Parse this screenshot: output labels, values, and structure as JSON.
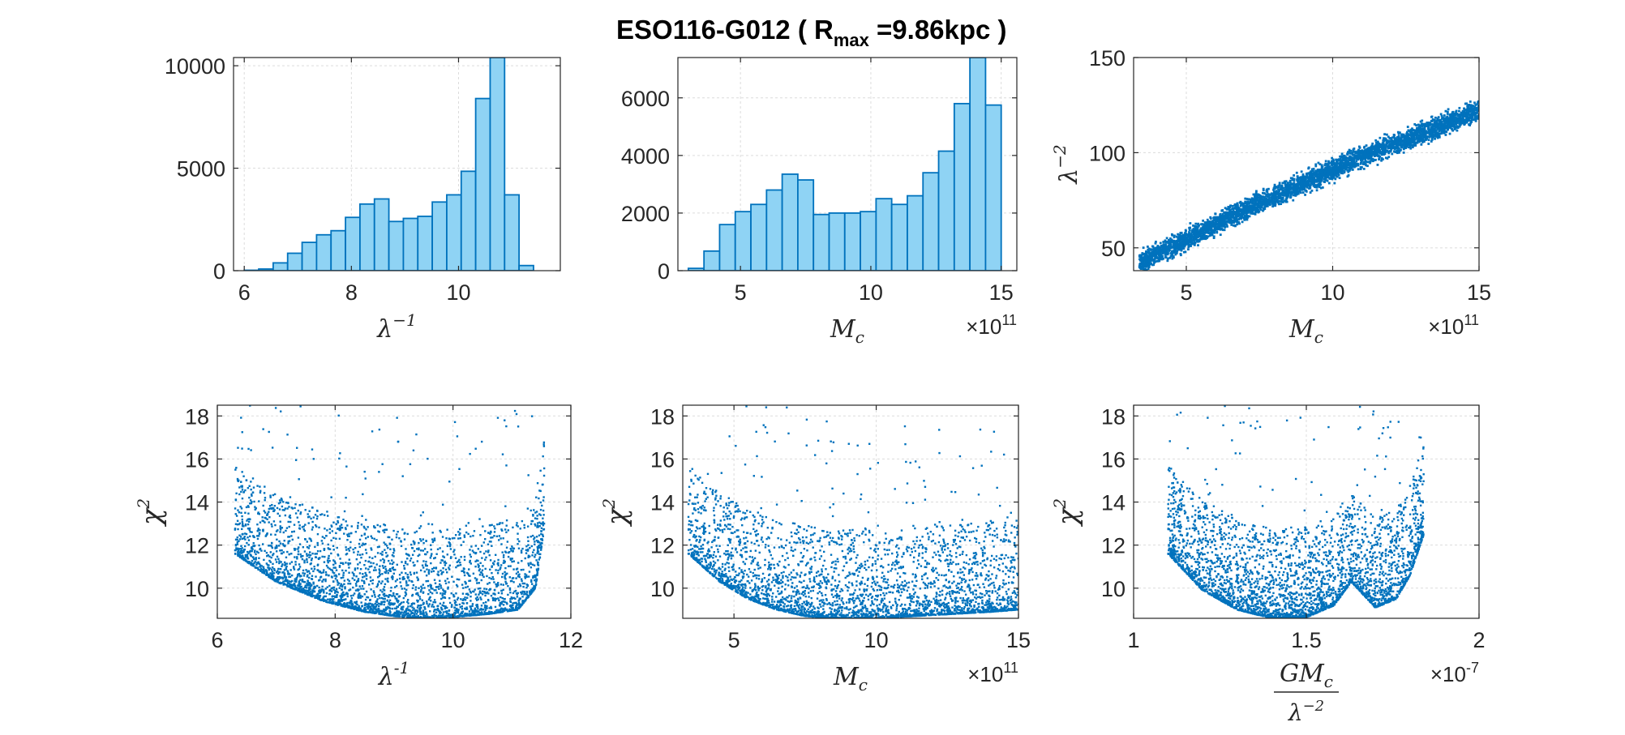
{
  "title": {
    "main": "ESO116-G012  (  R",
    "sub": "max",
    "rest": "  =9.86kpc  )"
  },
  "colors": {
    "hist_fill": "#8fd3f4",
    "hist_edge": "#0072bd",
    "points": "#0072bd",
    "grid": "#dcdcdc",
    "axis": "#262626"
  },
  "chart_data": [
    {
      "id": "p1",
      "type": "bar",
      "xlabel": {
        "base": "λ",
        "sup": "−1"
      },
      "xlim": [
        5.8,
        11.9
      ],
      "ylim": [
        0,
        10400
      ],
      "xticks": [
        6,
        8,
        10
      ],
      "xtick_labels": [
        "6",
        "8",
        "10"
      ],
      "yticks": [
        0,
        5000,
        10000
      ],
      "ytick_labels": [
        "0",
        "5000",
        "10000"
      ],
      "bin_edges": [
        6.0,
        6.27,
        6.54,
        6.81,
        7.08,
        7.35,
        7.62,
        7.89,
        8.16,
        8.43,
        8.7,
        8.97,
        9.24,
        9.51,
        9.78,
        10.05,
        10.32,
        10.59,
        10.86,
        11.13,
        11.4,
        11.67
      ],
      "values": [
        20,
        80,
        380,
        850,
        1380,
        1750,
        1950,
        2600,
        3250,
        3500,
        2400,
        2550,
        2650,
        3350,
        3700,
        4850,
        8400,
        10400,
        3700,
        250,
        0
      ],
      "grid": true
    },
    {
      "id": "p2",
      "type": "bar",
      "xlabel": {
        "base": "M",
        "sub": "c"
      },
      "exponent": {
        "base": "×10",
        "sup": "11"
      },
      "xlim": [
        2.6,
        15.6
      ],
      "ylim": [
        0,
        7400
      ],
      "xticks": [
        5,
        10,
        15
      ],
      "xtick_labels": [
        "5",
        "10",
        "15"
      ],
      "yticks": [
        0,
        2000,
        4000,
        6000
      ],
      "ytick_labels": [
        "0",
        "2000",
        "4000",
        "6000"
      ],
      "bin_edges": [
        3.0,
        3.6,
        4.2,
        4.8,
        5.4,
        6.0,
        6.6,
        7.2,
        7.8,
        8.4,
        9.0,
        9.6,
        10.2,
        10.8,
        11.4,
        12.0,
        12.6,
        13.2,
        13.8,
        14.4,
        15.0
      ],
      "values": [
        80,
        680,
        1600,
        2050,
        2300,
        2800,
        3350,
        3150,
        1950,
        2000,
        2000,
        2050,
        2500,
        2300,
        2600,
        3400,
        4150,
        5800,
        7400,
        5750
      ],
      "grid": true
    },
    {
      "id": "p3",
      "type": "scatter",
      "xlabel": {
        "base": "M",
        "sub": "c"
      },
      "ylabel": {
        "base": "λ",
        "sup": "−2"
      },
      "exponent": {
        "base": "×10",
        "sup": "11"
      },
      "xlim": [
        3.2,
        15
      ],
      "ylim": [
        38,
        150
      ],
      "xticks": [
        5,
        10,
        15
      ],
      "xtick_labels": [
        "5",
        "10",
        "15"
      ],
      "yticks": [
        50,
        100,
        150
      ],
      "ytick_labels": [
        "50",
        "100",
        "150"
      ],
      "trend": {
        "x": [
          3.4,
          5,
          7,
          9,
          11,
          13,
          15
        ],
        "y": [
          42,
          54,
          70,
          84,
          98,
          110,
          122
        ]
      },
      "spread": 4.5,
      "grid": true
    },
    {
      "id": "p4",
      "type": "scatter",
      "xlabel": {
        "base": "λ",
        "sup": "-1",
        "upright": true
      },
      "ylabel": {
        "base": "χ",
        "sup": "2"
      },
      "xlim": [
        6,
        12
      ],
      "ylim": [
        8.6,
        18.5
      ],
      "xticks": [
        6,
        8,
        10,
        12
      ],
      "xtick_labels": [
        "6",
        "8",
        "10",
        "12"
      ],
      "yticks": [
        10,
        12,
        14,
        16,
        18
      ],
      "ytick_labels": [
        "10",
        "12",
        "14",
        "16",
        "18"
      ],
      "lower_envelope": {
        "x": [
          6.3,
          7,
          7.8,
          8.5,
          9,
          9.5,
          10,
          10.6,
          11.1,
          11.4,
          11.55
        ],
        "y": [
          11.6,
          10.3,
          9.4,
          8.9,
          8.7,
          8.6,
          8.65,
          8.8,
          9.0,
          10.0,
          12.8
        ]
      },
      "x_range": [
        6.3,
        11.55
      ],
      "grid": true
    },
    {
      "id": "p5",
      "type": "scatter",
      "xlabel": {
        "base": "M",
        "sub": "c"
      },
      "ylabel": {
        "base": "χ",
        "sup": "2"
      },
      "exponent": {
        "base": "×10",
        "sup": "11"
      },
      "xlim": [
        3.2,
        15
      ],
      "ylim": [
        8.6,
        18.5
      ],
      "xticks": [
        5,
        10,
        15
      ],
      "xtick_labels": [
        "5",
        "10",
        "15"
      ],
      "yticks": [
        10,
        12,
        14,
        16,
        18
      ],
      "ytick_labels": [
        "10",
        "12",
        "14",
        "16",
        "18"
      ],
      "lower_envelope": {
        "x": [
          3.4,
          4.5,
          5.5,
          6.5,
          7.5,
          8.5,
          10,
          12,
          14,
          15
        ],
        "y": [
          11.6,
          10.3,
          9.5,
          9.0,
          8.7,
          8.6,
          8.6,
          8.75,
          8.9,
          9.0
        ]
      },
      "x_range": [
        3.4,
        15
      ],
      "grid": true
    },
    {
      "id": "p6",
      "type": "scatter",
      "xlabel": {
        "num_base": "GM",
        "num_sub": "c",
        "den_base": "λ",
        "den_sup": "−2"
      },
      "ylabel": {
        "base": "χ",
        "sup": "2"
      },
      "exponent": {
        "base": "×10",
        "sup": "-7"
      },
      "xlim": [
        1,
        2
      ],
      "ylim": [
        8.6,
        18.5
      ],
      "xticks": [
        1,
        1.5,
        2
      ],
      "xtick_labels": [
        "1",
        "1.5",
        "2"
      ],
      "yticks": [
        10,
        12,
        14,
        16,
        18
      ],
      "ytick_labels": [
        "10",
        "12",
        "14",
        "16",
        "18"
      ],
      "lower_envelope": {
        "x": [
          1.1,
          1.2,
          1.3,
          1.4,
          1.5,
          1.58,
          1.63,
          1.7,
          1.76,
          1.8,
          1.84
        ],
        "y": [
          11.6,
          9.9,
          9.0,
          8.6,
          8.65,
          9.2,
          10.3,
          9.1,
          9.5,
          10.6,
          12.5
        ]
      },
      "x_range": [
        1.1,
        1.84
      ],
      "grid": true
    }
  ]
}
